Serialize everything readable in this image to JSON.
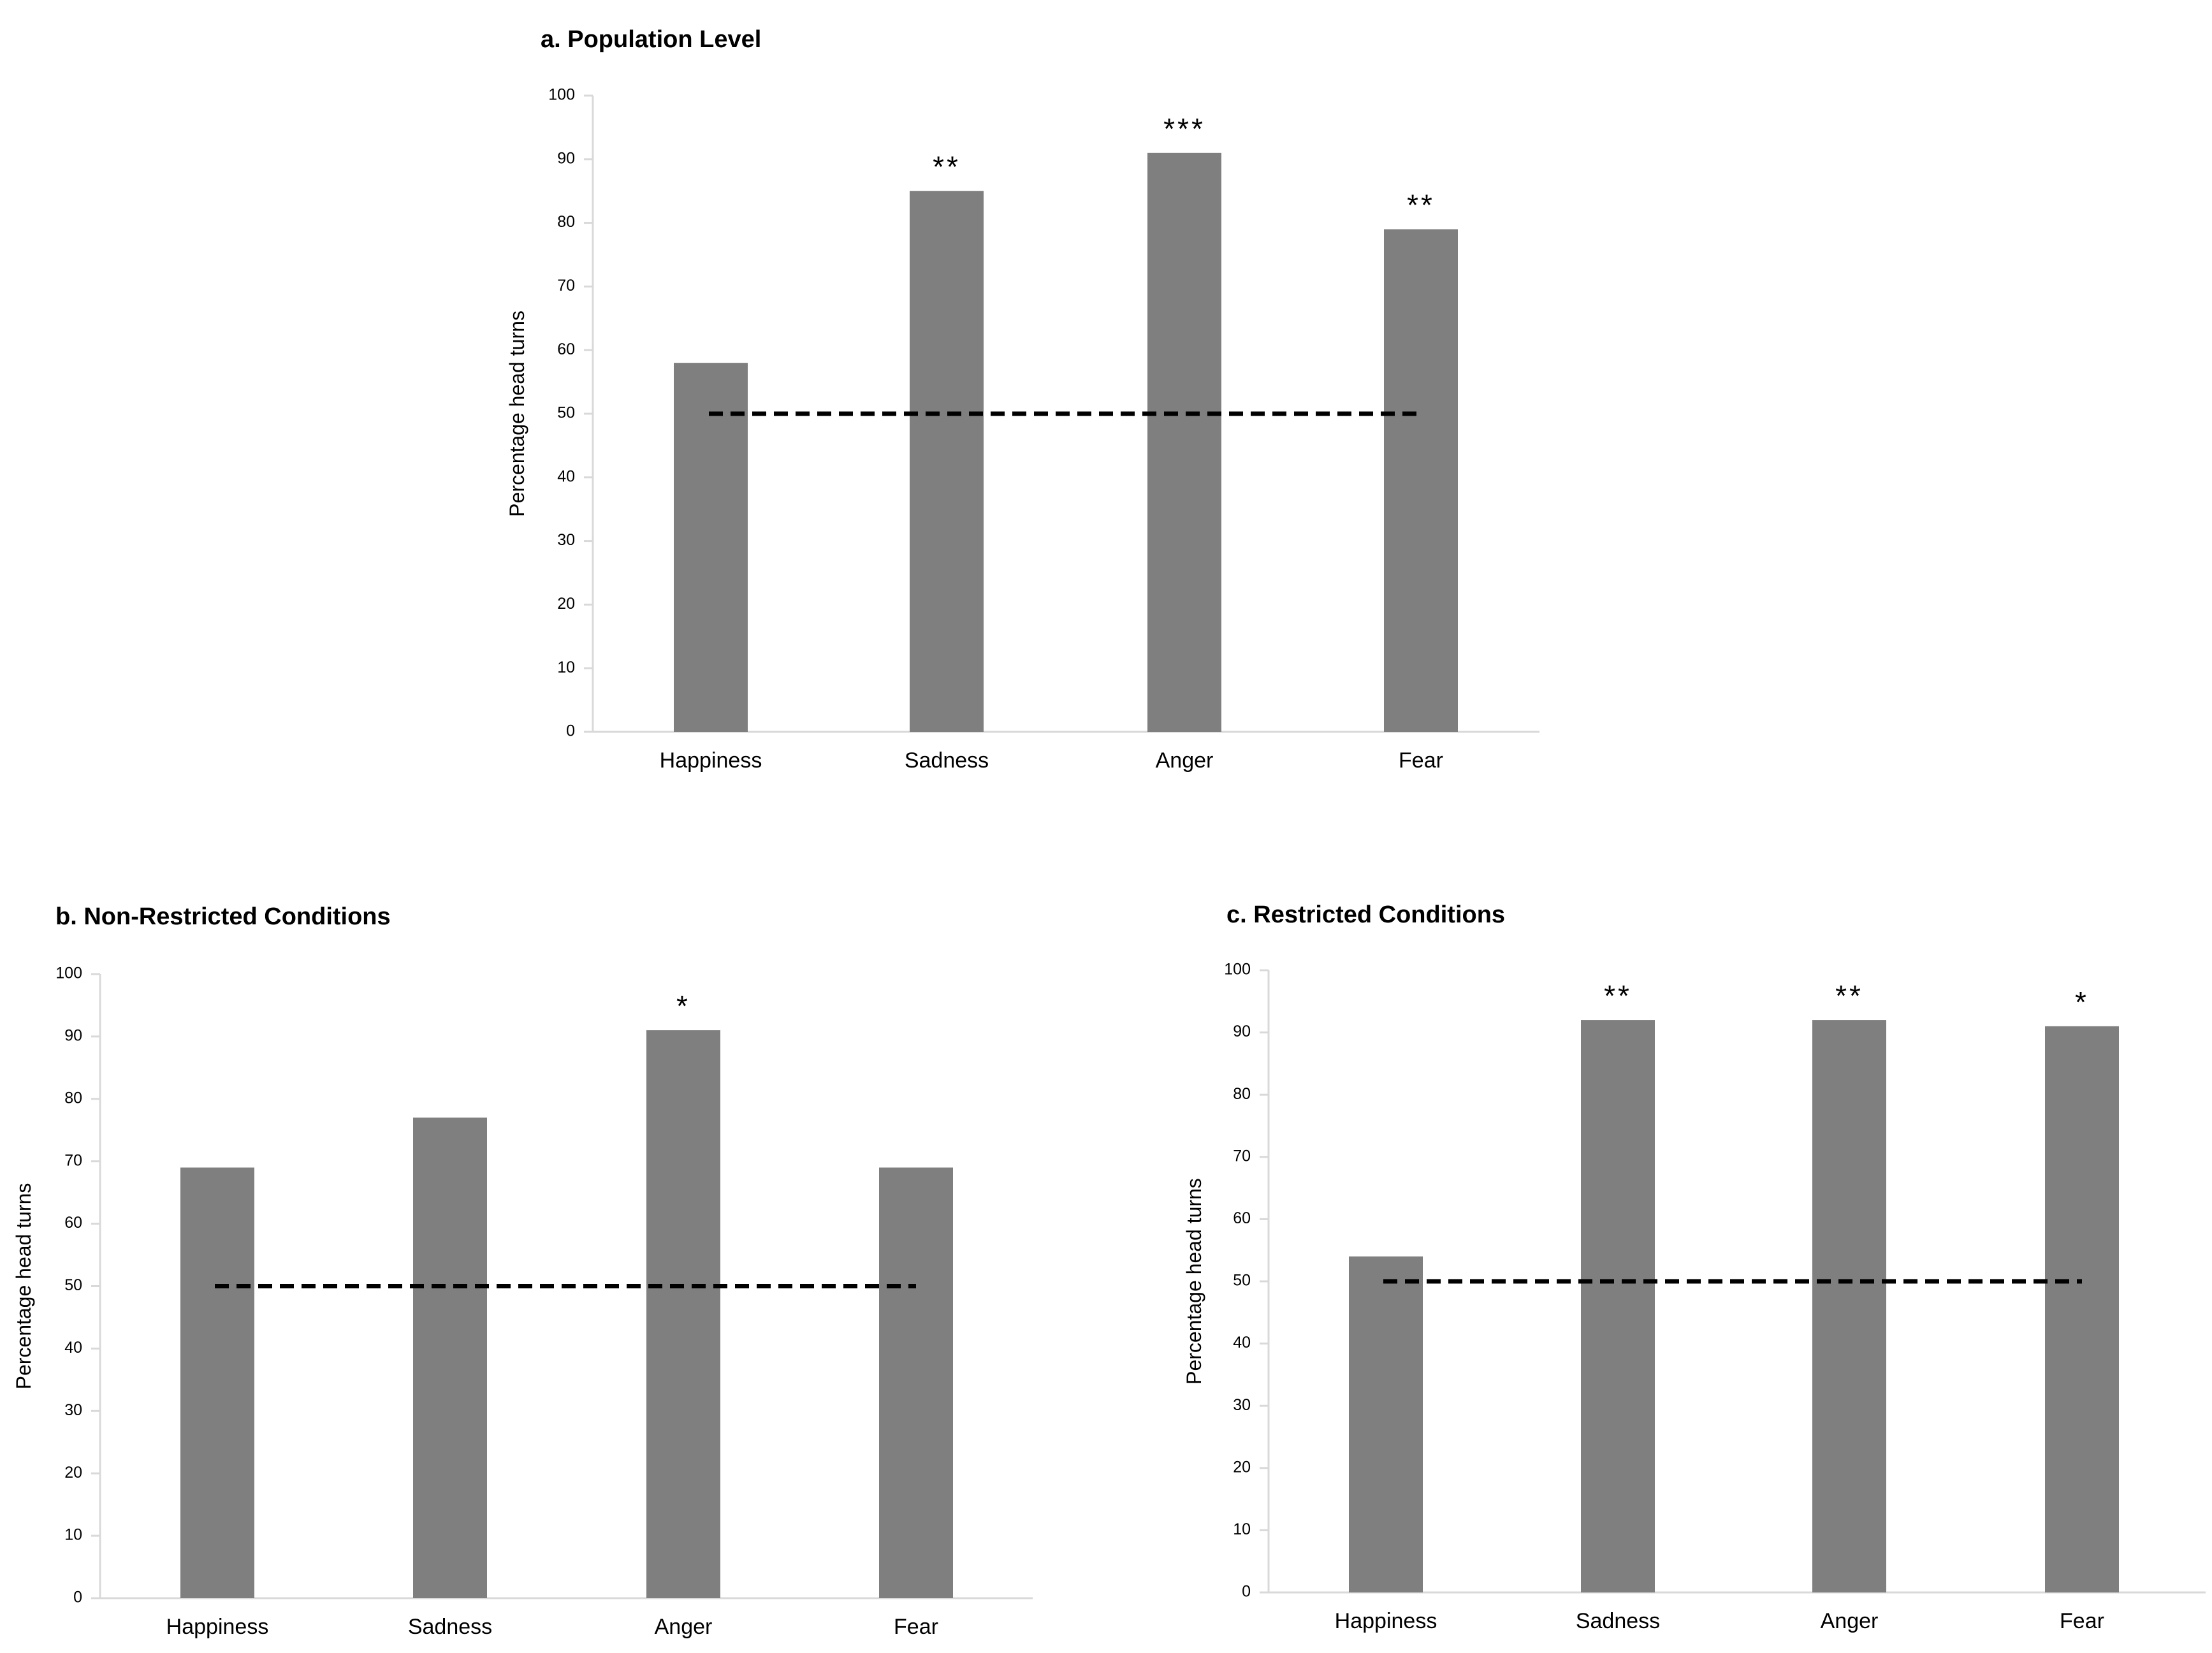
{
  "colors": {
    "bar": "#7f7f7f",
    "axis": "#d9d9d9",
    "reference_line": "#000000",
    "text": "#000000"
  },
  "chart_data": [
    {
      "panel": "a",
      "type": "bar",
      "title": "a.  Population Level",
      "ylabel": "Percentage head turns",
      "xlabel": "",
      "categories": [
        "Happiness",
        "Sadness",
        "Anger",
        "Fear"
      ],
      "values": [
        58,
        85,
        91,
        79
      ],
      "significance": [
        "",
        "**",
        "***",
        "**"
      ],
      "reference_line": 50,
      "ylim": [
        0,
        100
      ],
      "yticks": [
        0,
        10,
        20,
        30,
        40,
        50,
        60,
        70,
        80,
        90,
        100
      ],
      "legend": "none",
      "grid": false
    },
    {
      "panel": "b",
      "type": "bar",
      "title": "b.  Non-Restricted Conditions",
      "ylabel": "Percentage head turns",
      "xlabel": "",
      "categories": [
        "Happiness",
        "Sadness",
        "Anger",
        "Fear"
      ],
      "values": [
        69,
        77,
        91,
        69
      ],
      "significance": [
        "",
        "",
        "*",
        ""
      ],
      "reference_line": 50,
      "ylim": [
        0,
        100
      ],
      "yticks": [
        0,
        10,
        20,
        30,
        40,
        50,
        60,
        70,
        80,
        90,
        100
      ],
      "legend": "none",
      "grid": false
    },
    {
      "panel": "c",
      "type": "bar",
      "title": "c.  Restricted Conditions",
      "ylabel": "Percentage head turns",
      "xlabel": "",
      "categories": [
        "Happiness",
        "Sadness",
        "Anger",
        "Fear"
      ],
      "values": [
        54,
        92,
        92,
        91
      ],
      "significance": [
        "",
        "**",
        "**",
        "*"
      ],
      "reference_line": 50,
      "ylim": [
        0,
        100
      ],
      "yticks": [
        0,
        10,
        20,
        30,
        40,
        50,
        60,
        70,
        80,
        90,
        100
      ],
      "legend": "none",
      "grid": false
    }
  ]
}
